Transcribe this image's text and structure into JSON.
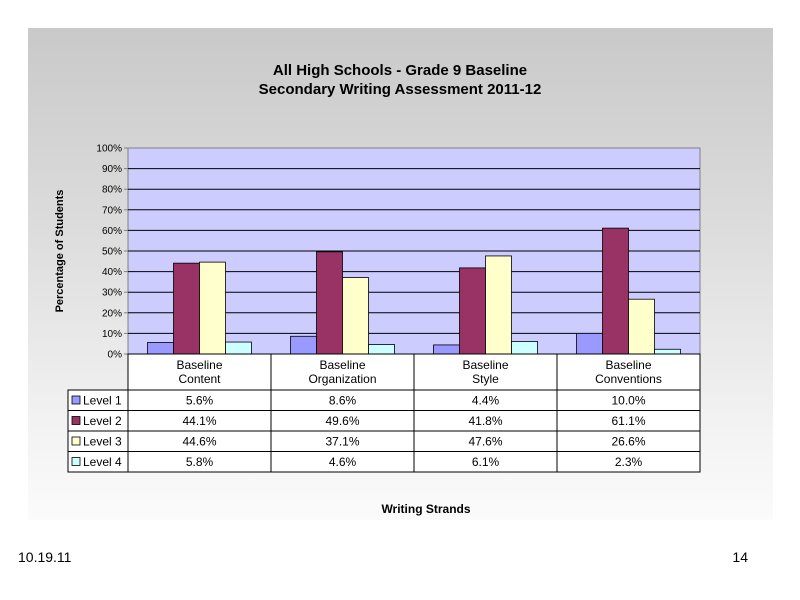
{
  "slide": {
    "date": "10.19.11",
    "page_number": "14"
  },
  "chart_data": {
    "type": "bar",
    "title": "All High Schools - Grade 9 Baseline",
    "subtitle": "Secondary Writing Assessment 2011-12",
    "xlabel": "Writing Strands",
    "ylabel": "Percentage of Students",
    "ylim": [
      0,
      100
    ],
    "y_ticks": [
      "0%",
      "10%",
      "20%",
      "30%",
      "40%",
      "50%",
      "60%",
      "70%",
      "80%",
      "90%",
      "100%"
    ],
    "grid": true,
    "legend": "data-table",
    "categories": [
      [
        "Baseline",
        "Content"
      ],
      [
        "Baseline",
        "Organization"
      ],
      [
        "Baseline",
        "Style"
      ],
      [
        "Baseline",
        "Conventions"
      ]
    ],
    "series": [
      {
        "name": "Level 1",
        "color": "#9999ff",
        "values": [
          5.6,
          8.6,
          4.4,
          10.0
        ],
        "labels": [
          "5.6%",
          "8.6%",
          "4.4%",
          "10.0%"
        ]
      },
      {
        "name": "Level 2",
        "color": "#993366",
        "values": [
          44.1,
          49.6,
          41.8,
          61.1
        ],
        "labels": [
          "44.1%",
          "49.6%",
          "41.8%",
          "61.1%"
        ]
      },
      {
        "name": "Level 3",
        "color": "#ffffcc",
        "values": [
          44.6,
          37.1,
          47.6,
          26.6
        ],
        "labels": [
          "44.6%",
          "37.1%",
          "47.6%",
          "26.6%"
        ]
      },
      {
        "name": "Level 4",
        "color": "#ccffff",
        "values": [
          5.8,
          4.6,
          6.1,
          2.3
        ],
        "labels": [
          "5.8%",
          "4.6%",
          "6.1%",
          "2.3%"
        ]
      }
    ],
    "plot_background": "#ccccff"
  }
}
